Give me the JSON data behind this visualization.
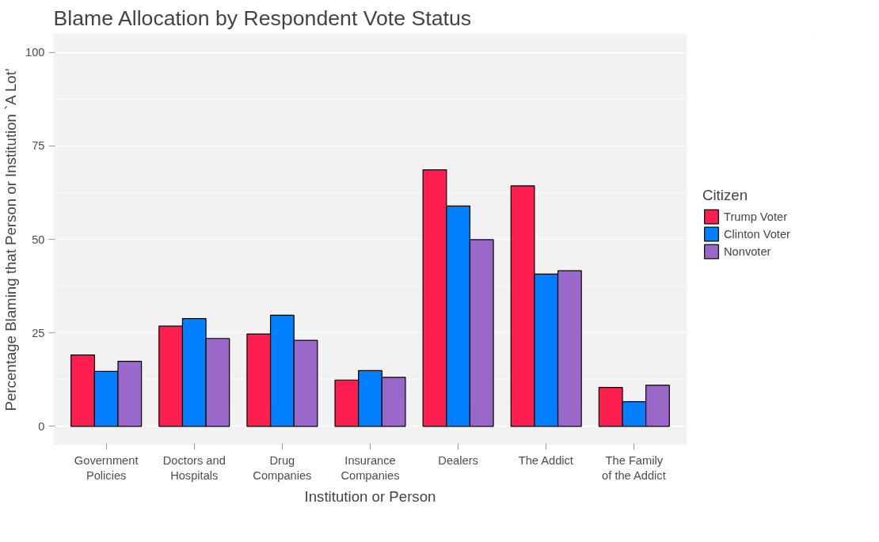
{
  "chart_data": {
    "type": "bar",
    "title": "Blame Allocation by Respondent Vote Status",
    "xlabel": "Institution or Person",
    "ylabel": "Percentage Blaming that Person or Institution `A Lot'",
    "legend_title": "Citizen",
    "categories": [
      "Government\nPolicies",
      "Doctors and\nHospitals",
      "Drug\nCompanies",
      "Insurance\nCompanies",
      "Dealers",
      "The Addict",
      "The Family\nof the Addict"
    ],
    "series": [
      {
        "name": "Trump Voter",
        "color": "#ff1f4f",
        "values": [
          19.1,
          26.8,
          24.7,
          12.4,
          68.6,
          64.3,
          10.4
        ]
      },
      {
        "name": "Clinton Voter",
        "color": "#007fff",
        "values": [
          14.7,
          28.8,
          29.7,
          14.9,
          58.9,
          40.7,
          6.6
        ]
      },
      {
        "name": "Nonvoter",
        "color": "#9a68c8",
        "values": [
          17.4,
          23.5,
          23.0,
          13.1,
          49.9,
          41.6,
          11.0
        ]
      }
    ],
    "ylim": [
      -5,
      105
    ],
    "yticks": [
      0,
      25,
      50,
      75,
      100
    ],
    "grid": "y",
    "legend": "right"
  }
}
